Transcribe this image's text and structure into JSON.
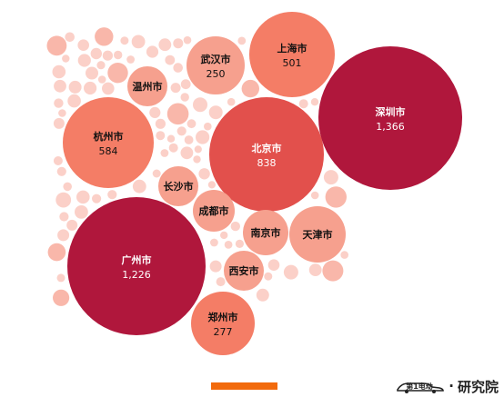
{
  "chart_data": {
    "type": "bubble",
    "bubbles": [
      {
        "name": "深圳市",
        "value": 1366,
        "value_label": "1,366"
      },
      {
        "name": "广州市",
        "value": 1226,
        "value_label": "1,226"
      },
      {
        "name": "北京市",
        "value": 838,
        "value_label": "838"
      },
      {
        "name": "杭州市",
        "value": 584,
        "value_label": "584"
      },
      {
        "name": "上海市",
        "value": 501,
        "value_label": "501"
      },
      {
        "name": "郑州市",
        "value": 277,
        "value_label": "277"
      },
      {
        "name": "武汉市",
        "value": 250,
        "value_label": "250"
      },
      {
        "name": "天津市",
        "value": null,
        "value_label": ""
      },
      {
        "name": "南京市",
        "value": null,
        "value_label": ""
      },
      {
        "name": "成都市",
        "value": null,
        "value_label": ""
      },
      {
        "name": "长沙市",
        "value": null,
        "value_label": ""
      },
      {
        "name": "西安市",
        "value": null,
        "value_label": ""
      },
      {
        "name": "温州市",
        "value": null,
        "value_label": ""
      }
    ]
  },
  "watermark": {
    "brand_text": "第1电动",
    "separator": "·",
    "suffix_text": "研究院"
  },
  "colors": {
    "dark_red": "#b0173c",
    "red": "#e2504c",
    "salmon": "#f47d66",
    "light_salmon": "#f6a08e",
    "pale_salmon": "#f9b7aa",
    "faint_pink": "#fbd0c8",
    "accent_orange": "#f26a0c"
  }
}
